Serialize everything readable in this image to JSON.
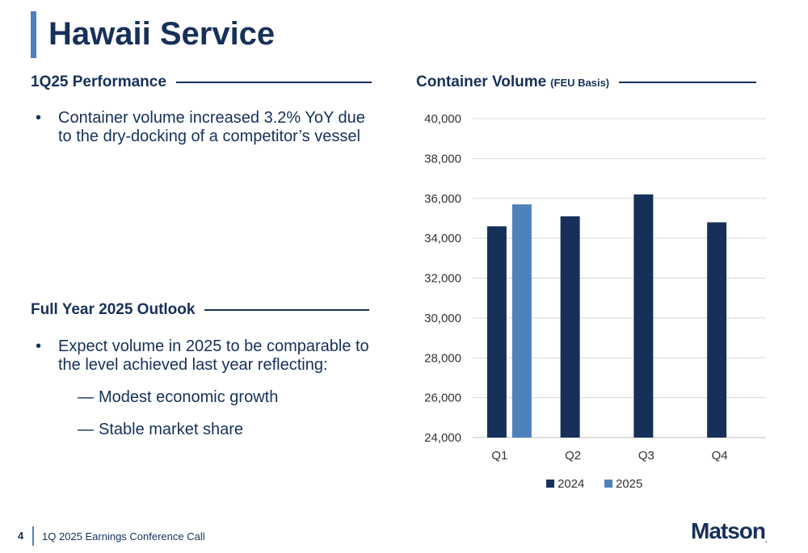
{
  "page": {
    "title": "Hawaii Service",
    "page_number": "4",
    "footer": "1Q 2025 Earnings Conference Call",
    "logo": "Matson",
    "logo_mark": "."
  },
  "performance": {
    "heading": "1Q25 Performance",
    "bullets": [
      "Container volume increased 3.2% YoY due to the dry-docking of a competitor’s vessel"
    ]
  },
  "outlook": {
    "heading": "Full Year 2025 Outlook",
    "bullets": [
      "Expect volume in 2025 to be comparable to the level achieved last year reflecting:"
    ],
    "sub_bullets": [
      "Modest economic growth",
      "Stable market share"
    ]
  },
  "chart_header": {
    "heading": "Container Volume",
    "subheading": "(FEU Basis)"
  },
  "chart_data": {
    "type": "bar",
    "categories": [
      "Q1",
      "Q2",
      "Q3",
      "Q4"
    ],
    "series": [
      {
        "name": "2024",
        "values": [
          34600,
          35100,
          36200,
          34800
        ],
        "color": "#17305a"
      },
      {
        "name": "2025",
        "values": [
          35700,
          null,
          null,
          null
        ],
        "color": "#4f81bd"
      }
    ],
    "ylim": [
      24000,
      40000
    ],
    "yticks": [
      "24,000",
      "26,000",
      "28,000",
      "30,000",
      "32,000",
      "34,000",
      "36,000",
      "38,000",
      "40,000"
    ],
    "grid": true,
    "legend": "bottom"
  }
}
